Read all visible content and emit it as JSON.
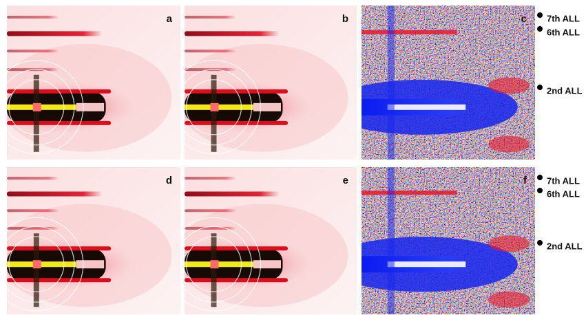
{
  "panels": [
    "a",
    "b",
    "c",
    "d",
    "e",
    "f"
  ],
  "annotations": [
    [
      "7th ALL",
      "6th ALL",
      "2nd ALL"
    ],
    [
      "7th ALL",
      "6th ALL",
      "2nd ALL"
    ]
  ]
}
